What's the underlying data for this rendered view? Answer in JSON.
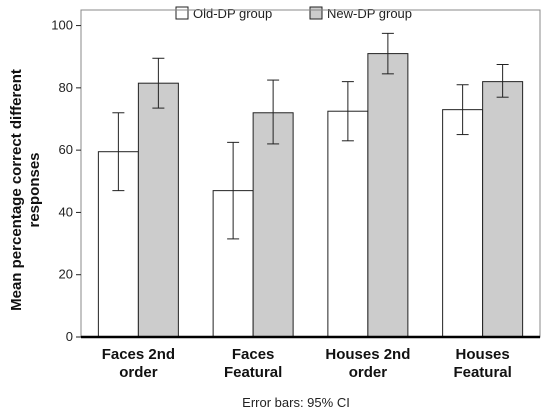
{
  "chart_data": {
    "type": "bar",
    "ylabel_lines": [
      "Mean percentage correct different",
      "responses"
    ],
    "ylim": [
      0,
      105
    ],
    "yticks": [
      "0",
      "20",
      "40",
      "60",
      "80",
      "100"
    ],
    "ytick_values": [
      0,
      20,
      40,
      60,
      80,
      100
    ],
    "categories": [
      [
        "Faces 2nd",
        "order"
      ],
      [
        "Faces",
        "Featural"
      ],
      [
        "Houses 2nd",
        "order"
      ],
      [
        "Houses",
        "Featural"
      ]
    ],
    "legend_position": "top",
    "series": [
      {
        "name": "Old-DP group",
        "color": "#ffffff",
        "values": [
          59.5,
          47,
          72.5,
          73
        ],
        "ci_low": [
          47,
          31.5,
          63,
          65
        ],
        "ci_high": [
          72,
          62.5,
          82,
          81
        ]
      },
      {
        "name": "New-DP group",
        "color": "#cccccc",
        "values": [
          81.5,
          72,
          91,
          82
        ],
        "ci_low": [
          73.5,
          62,
          84.5,
          77
        ],
        "ci_high": [
          89.5,
          82.5,
          97.5,
          87.5
        ]
      }
    ],
    "caption": "Error bars: 95% CI"
  }
}
